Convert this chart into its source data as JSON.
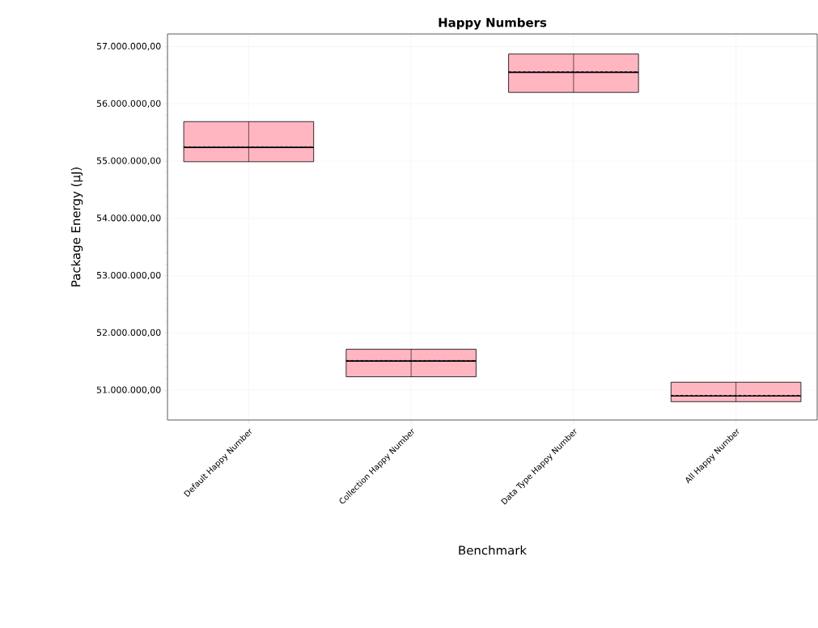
{
  "chart_data": {
    "type": "box",
    "title": "Happy Numbers",
    "xlabel": "Benchmark",
    "ylabel": "Package Energy (µJ)",
    "categories": [
      "Default Happy Number",
      "Collection Happy Number",
      "Data Type Happy Number",
      "All Happy Number"
    ],
    "color": "#ffb6c1",
    "boxes": [
      {
        "low": 54990000,
        "q1": 54990000,
        "median": 55240000,
        "q3": 55690000,
        "high": 55690000,
        "mean": 55250000
      },
      {
        "low": 51235000,
        "q1": 51235000,
        "median": 51510000,
        "q3": 51715000,
        "high": 51715000,
        "mean": 51520000
      },
      {
        "low": 56200000,
        "q1": 56200000,
        "median": 56550000,
        "q3": 56870000,
        "high": 56870000,
        "mean": 56560000
      },
      {
        "low": 50800000,
        "q1": 50800000,
        "median": 50900000,
        "q3": 51140000,
        "high": 51140000,
        "mean": 50910000
      }
    ],
    "ylim": [
      50480000,
      57220000
    ],
    "yticks": [
      {
        "value": 51000000,
        "label": "51.000.000,00"
      },
      {
        "value": 52000000,
        "label": "52.000.000,00"
      },
      {
        "value": 53000000,
        "label": "53.000.000,00"
      },
      {
        "value": 54000000,
        "label": "54.000.000,00"
      },
      {
        "value": 55000000,
        "label": "55.000.000,00"
      },
      {
        "value": 56000000,
        "label": "56.000.000,00"
      },
      {
        "value": 57000000,
        "label": "57.000.000,00"
      }
    ],
    "grid": true
  }
}
